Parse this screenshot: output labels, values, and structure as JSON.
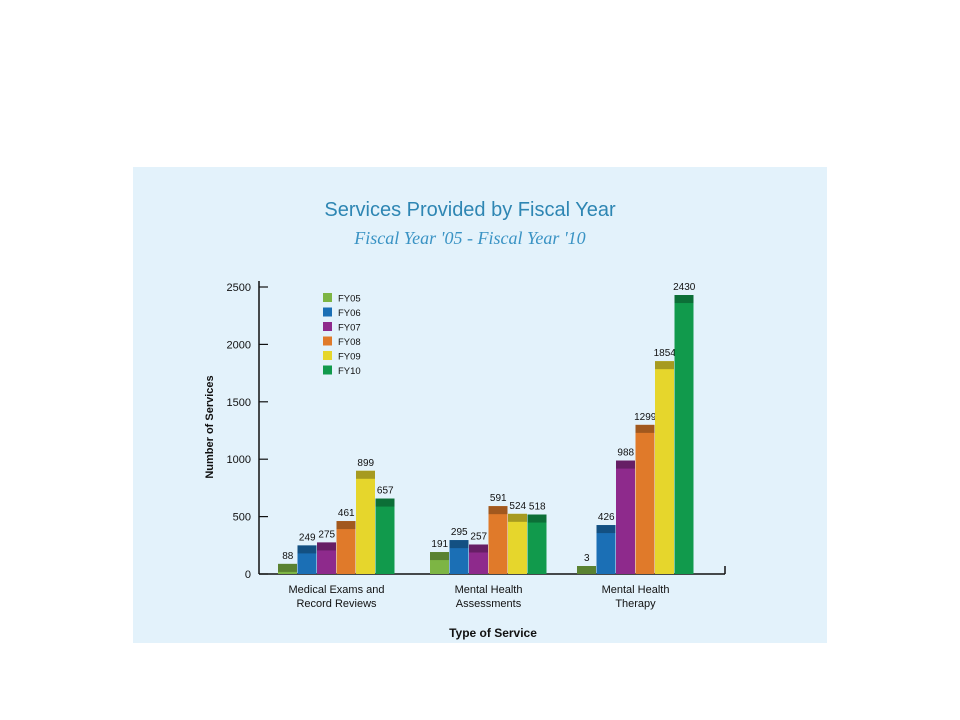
{
  "chart_data": {
    "type": "bar",
    "title": "Services Provided by Fiscal Year",
    "subtitle": "Fiscal Year '05 - Fiscal Year '10",
    "xlabel": "Type of Service",
    "ylabel": "Number of Services",
    "ylim": [
      0,
      2500
    ],
    "yticks": [
      0,
      500,
      1000,
      1500,
      2000,
      2500
    ],
    "categories": [
      [
        "Medical Exams and",
        "Record Reviews"
      ],
      [
        "Mental Health",
        "Assessments"
      ],
      [
        "Mental Health",
        "Therapy"
      ]
    ],
    "series": [
      {
        "name": "FY05",
        "color": "#7db544",
        "values": [
          88,
          191,
          3
        ]
      },
      {
        "name": "FY06",
        "color": "#1b6fb5",
        "values": [
          249,
          295,
          426
        ]
      },
      {
        "name": "FY07",
        "color": "#8e2a8c",
        "values": [
          275,
          257,
          988
        ]
      },
      {
        "name": "FY08",
        "color": "#e07a2a",
        "values": [
          461,
          591,
          1299
        ]
      },
      {
        "name": "FY09",
        "color": "#e6d62c",
        "values": [
          899,
          524,
          1854
        ]
      },
      {
        "name": "FY10",
        "color": "#119a4c",
        "values": [
          657,
          518,
          2430
        ]
      }
    ],
    "legend_position": "top-left",
    "grid": false
  },
  "colors": {
    "panel_background": "#e3f2fb",
    "title": "#2e86b3",
    "subtitle": "#3a93c4"
  }
}
